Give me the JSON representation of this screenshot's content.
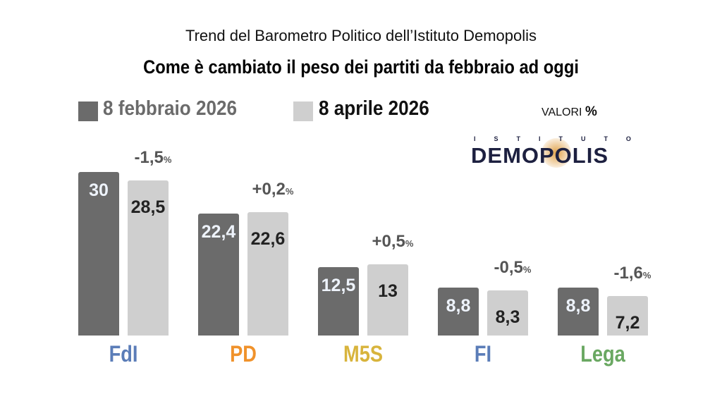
{
  "chart_data": {
    "type": "bar",
    "subtitle": "Trend del Barometro Politico dell’Istituto Demopolis",
    "title": "Come è cambiato il peso dei partiti da febbraio ad oggi",
    "unit_label": "VALORI",
    "unit_symbol": "%",
    "logo_top": "ISTITUTO",
    "logo_main": "DEMOPOLIS",
    "categories": [
      "FdI",
      "PD",
      "M5S",
      "FI",
      "Lega"
    ],
    "category_colors": [
      "#5b7db8",
      "#f0922b",
      "#d8b43c",
      "#5b7db8",
      "#6aa862"
    ],
    "series": [
      {
        "name": "8 febbraio 2026",
        "color": "#6b6b6b",
        "values": [
          30,
          22.4,
          12.5,
          8.8,
          8.8
        ],
        "labels": [
          "30",
          "22,4",
          "12,5",
          "8,8",
          "8,8"
        ]
      },
      {
        "name": "8 aprile 2026",
        "color": "#cfcfcf",
        "values": [
          28.5,
          22.6,
          13,
          8.3,
          7.2
        ],
        "labels": [
          "28,5",
          "22,6",
          "13",
          "8,3",
          "7,2"
        ]
      }
    ],
    "changes": [
      "-1,5",
      "+0,2",
      "+0,5",
      "-0,5",
      "-1,6"
    ],
    "ylim": [
      0,
      30
    ]
  }
}
